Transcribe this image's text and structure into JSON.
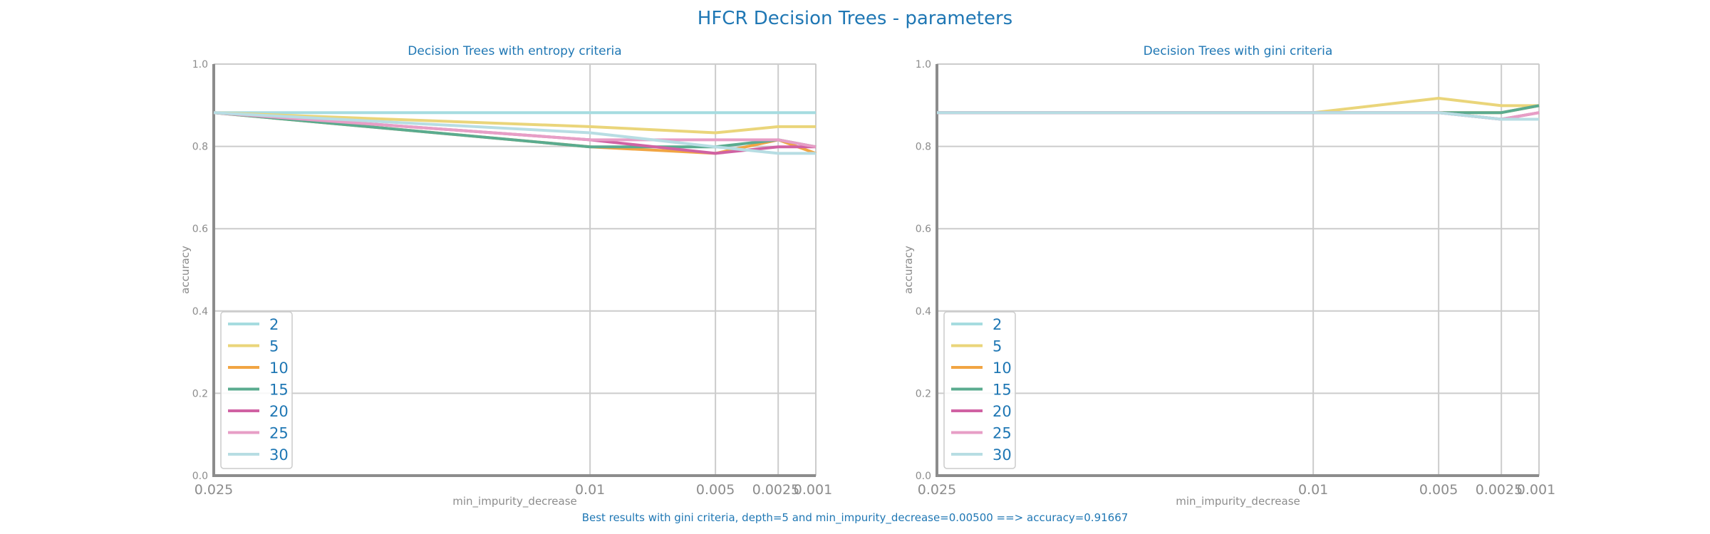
{
  "figure": {
    "title": "HFCR Decision Trees - parameters",
    "footer": "Best results with gini criteria, depth=5 and min_impurity_decrease=0.00500 ==> accuracy=0.91667"
  },
  "colors": {
    "2": "#a6dce0",
    "5": "#ead57a",
    "10": "#f1a543",
    "15": "#5aab8f",
    "20": "#d062a3",
    "25": "#e79ec6",
    "30": "#b7dde3",
    "title": "#1f77b4",
    "axis": "#8c8c8c",
    "grid": "#cccccc"
  },
  "chart_data": [
    {
      "type": "line",
      "title": "Decision Trees with entropy criteria",
      "xlabel": "min_impurity_decrease",
      "ylabel": "accuracy",
      "x": [
        0.025,
        0.01,
        0.005,
        0.0025,
        0.001
      ],
      "xticklabels": [
        "0.025",
        "0.01",
        "0.005",
        "0.0025",
        "0.001"
      ],
      "ylim": [
        0.0,
        1.0
      ],
      "yticks": [
        "0.0",
        "0.2",
        "0.4",
        "0.6",
        "0.8",
        "1.0"
      ],
      "grid": true,
      "legend": "lower-left",
      "series": [
        {
          "name": "2",
          "values": [
            0.882,
            0.882,
            0.882,
            0.882,
            0.882
          ]
        },
        {
          "name": "5",
          "values": [
            0.882,
            0.848,
            0.833,
            0.848,
            0.848
          ]
        },
        {
          "name": "10",
          "values": [
            0.882,
            0.799,
            0.783,
            0.816,
            0.783
          ]
        },
        {
          "name": "15",
          "values": [
            0.882,
            0.799,
            0.799,
            0.816,
            0.799
          ]
        },
        {
          "name": "20",
          "values": [
            0.882,
            0.816,
            0.783,
            0.799,
            0.799
          ]
        },
        {
          "name": "25",
          "values": [
            0.882,
            0.816,
            0.816,
            0.816,
            0.799
          ]
        },
        {
          "name": "30",
          "values": [
            0.882,
            0.833,
            0.799,
            0.783,
            0.783
          ]
        }
      ]
    },
    {
      "type": "line",
      "title": "Decision Trees with gini criteria",
      "xlabel": "min_impurity_decrease",
      "ylabel": "accuracy",
      "x": [
        0.025,
        0.01,
        0.005,
        0.0025,
        0.001
      ],
      "xticklabels": [
        "0.025",
        "0.01",
        "0.005",
        "0.0025",
        "0.001"
      ],
      "ylim": [
        0.0,
        1.0
      ],
      "yticks": [
        "0.0",
        "0.2",
        "0.4",
        "0.6",
        "0.8",
        "1.0"
      ],
      "grid": true,
      "legend": "lower-left",
      "series": [
        {
          "name": "2",
          "values": [
            0.882,
            0.882,
            0.882,
            0.866,
            0.866
          ]
        },
        {
          "name": "5",
          "values": [
            0.882,
            0.882,
            0.917,
            0.899,
            0.899
          ]
        },
        {
          "name": "10",
          "values": [
            0.882,
            0.882,
            0.882,
            0.882,
            0.899
          ]
        },
        {
          "name": "15",
          "values": [
            0.882,
            0.882,
            0.882,
            0.882,
            0.899
          ]
        },
        {
          "name": "20",
          "values": [
            0.882,
            0.882,
            0.882,
            0.866,
            0.882
          ]
        },
        {
          "name": "25",
          "values": [
            0.882,
            0.882,
            0.882,
            0.866,
            0.882
          ]
        },
        {
          "name": "30",
          "values": [
            0.882,
            0.882,
            0.882,
            0.866,
            0.866
          ]
        }
      ]
    }
  ]
}
